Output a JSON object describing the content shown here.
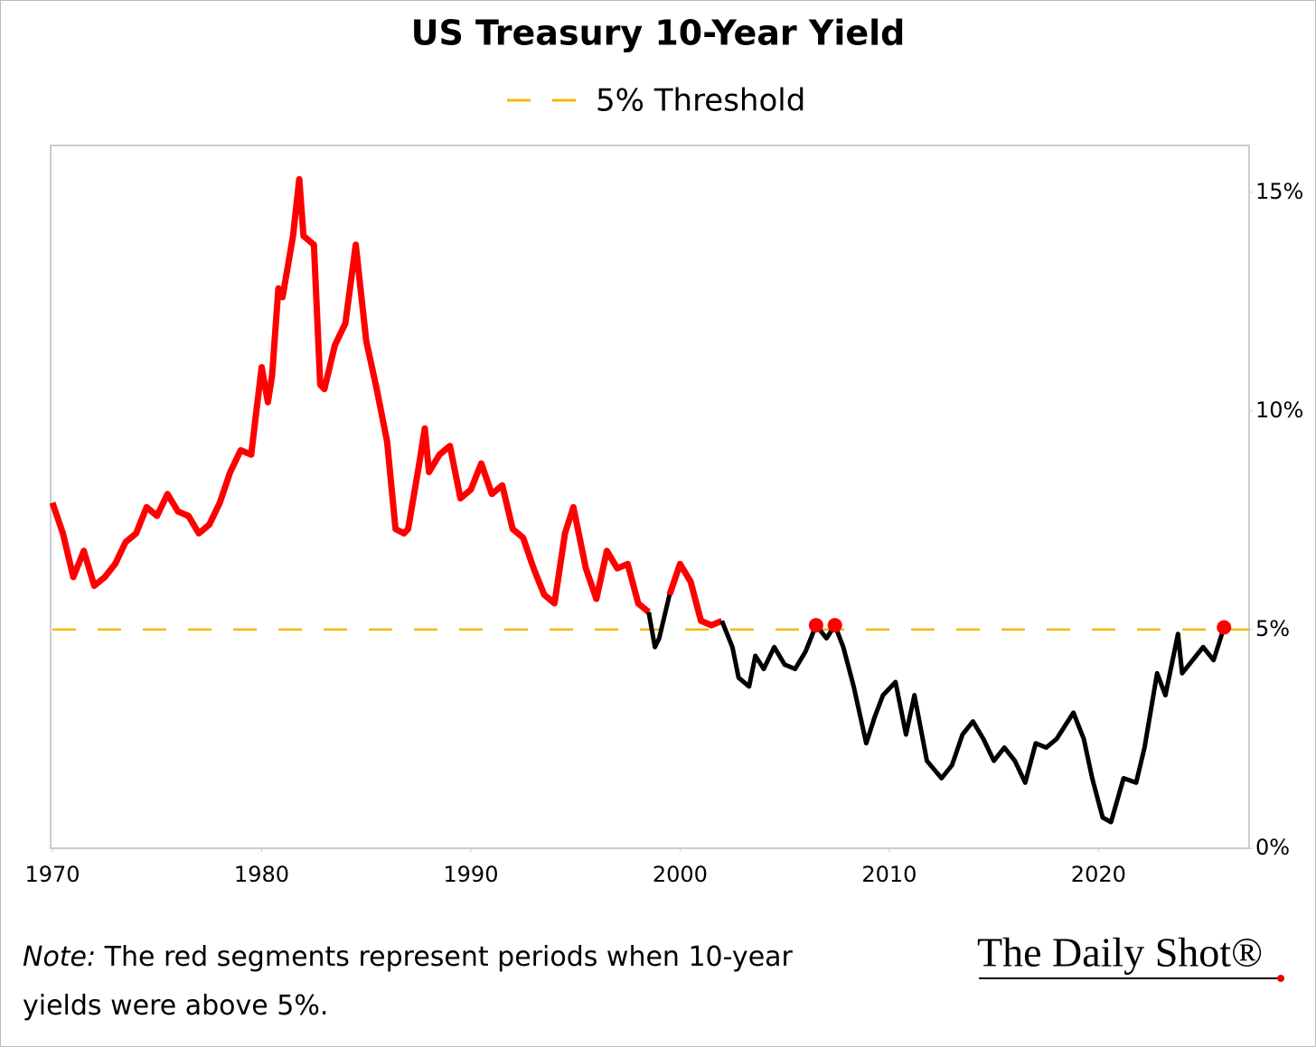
{
  "chart_data": {
    "type": "line",
    "title": "US Treasury 10-Year Yield",
    "threshold": 5,
    "threshold_label": "5% Threshold",
    "threshold_color": "#f5b800",
    "color_above": "#ff0000",
    "color_below": "#000000",
    "xlim": [
      1970,
      2027.2
    ],
    "xticks": [
      1970,
      1980,
      1990,
      2000,
      2010,
      2020
    ],
    "ylim": [
      0,
      16.07
    ],
    "yticks": [
      {
        "value": 0,
        "label": "0%"
      },
      {
        "value": 5,
        "label": "5%"
      },
      {
        "value": 10,
        "label": "10%"
      },
      {
        "value": 15,
        "label": "15%"
      }
    ],
    "x": [
      1970.0,
      1970.5,
      1971.0,
      1971.5,
      1972.0,
      1972.5,
      1973.0,
      1973.5,
      1974.0,
      1974.5,
      1975.0,
      1975.5,
      1976.0,
      1976.5,
      1977.0,
      1977.5,
      1978.0,
      1978.5,
      1979.0,
      1979.5,
      1980.0,
      1980.3,
      1980.5,
      1980.8,
      1981.0,
      1981.5,
      1981.8,
      1982.0,
      1982.5,
      1982.8,
      1983.0,
      1983.5,
      1984.0,
      1984.5,
      1985.0,
      1985.5,
      1986.0,
      1986.4,
      1986.8,
      1987.0,
      1987.5,
      1987.8,
      1988.0,
      1988.5,
      1989.0,
      1989.5,
      1990.0,
      1990.5,
      1991.0,
      1991.5,
      1992.0,
      1992.5,
      1993.0,
      1993.5,
      1994.0,
      1994.5,
      1994.9,
      1995.5,
      1996.0,
      1996.5,
      1997.0,
      1997.5,
      1998.0,
      1998.5,
      1998.8,
      1999.0,
      1999.5,
      2000.0,
      2000.5,
      2001.0,
      2001.5,
      2002.0,
      2002.5,
      2002.8,
      2003.3,
      2003.6,
      2004.0,
      2004.5,
      2005.0,
      2005.5,
      2006.0,
      2006.5,
      2007.0,
      2007.4,
      2007.8,
      2008.3,
      2008.9,
      2009.3,
      2009.7,
      2010.3,
      2010.8,
      2011.2,
      2011.8,
      2012.5,
      2013.0,
      2013.5,
      2014.0,
      2014.5,
      2015.0,
      2015.5,
      2016.0,
      2016.5,
      2017.0,
      2017.5,
      2018.0,
      2018.8,
      2019.3,
      2019.7,
      2020.2,
      2020.6,
      2021.2,
      2021.8,
      2022.2,
      2022.8,
      2023.2,
      2023.8,
      2024.0,
      2024.5,
      2025.0,
      2025.5,
      2026.0
    ],
    "values": [
      7.9,
      7.2,
      6.2,
      6.8,
      6.0,
      6.2,
      6.5,
      7.0,
      7.2,
      7.8,
      7.6,
      8.1,
      7.7,
      7.6,
      7.2,
      7.4,
      7.9,
      8.6,
      9.1,
      9.0,
      11.0,
      10.2,
      10.8,
      12.8,
      12.6,
      14.0,
      15.3,
      14.0,
      13.8,
      10.6,
      10.5,
      11.5,
      12.0,
      13.8,
      11.6,
      10.5,
      9.3,
      7.3,
      7.2,
      7.3,
      8.7,
      9.6,
      8.6,
      9.0,
      9.2,
      8.0,
      8.2,
      8.8,
      8.1,
      8.3,
      7.3,
      7.1,
      6.4,
      5.8,
      5.6,
      7.2,
      7.8,
      6.4,
      5.7,
      6.8,
      6.4,
      6.5,
      5.6,
      5.4,
      4.6,
      4.8,
      5.8,
      6.5,
      6.1,
      5.2,
      5.1,
      5.2,
      4.6,
      3.9,
      3.7,
      4.4,
      4.1,
      4.6,
      4.2,
      4.1,
      4.5,
      5.1,
      4.8,
      5.1,
      4.6,
      3.7,
      2.4,
      3.0,
      3.5,
      3.8,
      2.6,
      3.5,
      2.0,
      1.6,
      1.9,
      2.6,
      2.9,
      2.5,
      2.0,
      2.3,
      2.0,
      1.5,
      2.4,
      2.3,
      2.5,
      3.1,
      2.5,
      1.6,
      0.7,
      0.6,
      1.6,
      1.5,
      2.3,
      4.0,
      3.5,
      4.9,
      4.0,
      4.3,
      4.6,
      4.3,
      5.05
    ]
  },
  "note_label": "Note:",
  "note": "The red segments represent periods when 10-year yields were above 5%.",
  "logo": "The Daily Shot®"
}
